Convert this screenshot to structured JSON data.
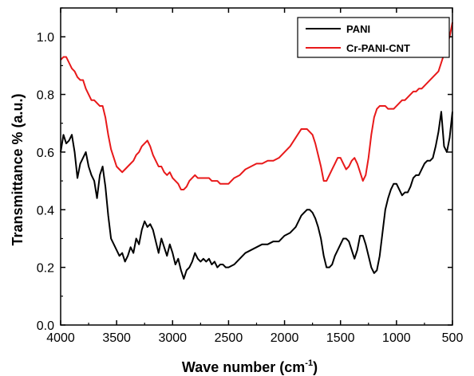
{
  "chart_data": {
    "type": "line",
    "xlabel": "Wave number (cm",
    "xlabel_sup": "-1",
    "xlabel_suffix": ")",
    "ylabel": "Transmittance % (a.u.)",
    "xlim": [
      4000,
      500
    ],
    "ylim": [
      0.0,
      1.1
    ],
    "x_ticks": [
      4000,
      3500,
      3000,
      2500,
      2000,
      1500,
      1000,
      500
    ],
    "y_ticks": [
      0.0,
      0.2,
      0.4,
      0.6,
      0.8,
      1.0
    ],
    "x_tick_labels": [
      "4000",
      "3500",
      "3000",
      "2500",
      "2000",
      "1500",
      "1000",
      "500"
    ],
    "y_tick_labels": [
      "0.0",
      "0.2",
      "0.4",
      "0.6",
      "0.8",
      "1.0"
    ],
    "grid": false,
    "legend_position": "top-right",
    "series": [
      {
        "name": "PANI",
        "color": "#000000",
        "x": [
          4000,
          3975,
          3950,
          3925,
          3900,
          3875,
          3850,
          3825,
          3800,
          3775,
          3750,
          3725,
          3700,
          3675,
          3650,
          3625,
          3600,
          3575,
          3550,
          3525,
          3500,
          3475,
          3450,
          3425,
          3400,
          3375,
          3350,
          3325,
          3300,
          3275,
          3250,
          3225,
          3200,
          3175,
          3150,
          3125,
          3100,
          3075,
          3050,
          3025,
          3000,
          2975,
          2950,
          2925,
          2900,
          2875,
          2850,
          2825,
          2800,
          2775,
          2750,
          2725,
          2700,
          2675,
          2650,
          2625,
          2600,
          2575,
          2550,
          2525,
          2500,
          2450,
          2400,
          2350,
          2300,
          2250,
          2200,
          2150,
          2100,
          2050,
          2000,
          1950,
          1900,
          1850,
          1800,
          1775,
          1750,
          1725,
          1700,
          1675,
          1650,
          1625,
          1600,
          1575,
          1550,
          1525,
          1500,
          1475,
          1450,
          1425,
          1400,
          1375,
          1350,
          1325,
          1300,
          1275,
          1250,
          1225,
          1200,
          1175,
          1150,
          1125,
          1100,
          1075,
          1050,
          1025,
          1000,
          975,
          950,
          925,
          900,
          875,
          850,
          825,
          800,
          775,
          750,
          725,
          700,
          675,
          650,
          625,
          600,
          575,
          550,
          525,
          500
        ],
        "values": [
          0.6,
          0.66,
          0.63,
          0.64,
          0.66,
          0.6,
          0.51,
          0.56,
          0.58,
          0.6,
          0.55,
          0.52,
          0.5,
          0.44,
          0.52,
          0.55,
          0.48,
          0.38,
          0.3,
          0.28,
          0.26,
          0.24,
          0.25,
          0.22,
          0.24,
          0.27,
          0.25,
          0.3,
          0.28,
          0.33,
          0.36,
          0.34,
          0.35,
          0.33,
          0.29,
          0.25,
          0.3,
          0.27,
          0.24,
          0.28,
          0.25,
          0.21,
          0.23,
          0.19,
          0.16,
          0.19,
          0.2,
          0.22,
          0.25,
          0.23,
          0.22,
          0.23,
          0.22,
          0.23,
          0.21,
          0.22,
          0.2,
          0.21,
          0.21,
          0.2,
          0.2,
          0.21,
          0.23,
          0.25,
          0.26,
          0.27,
          0.28,
          0.28,
          0.29,
          0.29,
          0.31,
          0.32,
          0.34,
          0.38,
          0.4,
          0.4,
          0.39,
          0.37,
          0.34,
          0.3,
          0.24,
          0.2,
          0.2,
          0.21,
          0.24,
          0.26,
          0.28,
          0.3,
          0.3,
          0.29,
          0.26,
          0.23,
          0.26,
          0.31,
          0.31,
          0.28,
          0.24,
          0.2,
          0.18,
          0.19,
          0.24,
          0.32,
          0.4,
          0.44,
          0.47,
          0.49,
          0.49,
          0.47,
          0.45,
          0.46,
          0.46,
          0.48,
          0.51,
          0.52,
          0.52,
          0.54,
          0.56,
          0.57,
          0.57,
          0.58,
          0.62,
          0.67,
          0.74,
          0.62,
          0.6,
          0.65,
          0.74
        ],
        "x_note": "x values listed in cm^-1"
      },
      {
        "name": "Cr-PANI-CNT",
        "color": "#e8191a",
        "x": [
          4000,
          3975,
          3950,
          3925,
          3900,
          3875,
          3850,
          3825,
          3800,
          3775,
          3750,
          3725,
          3700,
          3675,
          3650,
          3625,
          3600,
          3575,
          3550,
          3525,
          3500,
          3475,
          3450,
          3425,
          3400,
          3375,
          3350,
          3325,
          3300,
          3275,
          3250,
          3225,
          3200,
          3175,
          3150,
          3125,
          3100,
          3075,
          3050,
          3025,
          3000,
          2975,
          2950,
          2925,
          2900,
          2875,
          2850,
          2825,
          2800,
          2775,
          2750,
          2725,
          2700,
          2675,
          2650,
          2625,
          2600,
          2575,
          2550,
          2525,
          2500,
          2450,
          2400,
          2350,
          2300,
          2250,
          2200,
          2150,
          2100,
          2050,
          2000,
          1950,
          1900,
          1850,
          1800,
          1775,
          1750,
          1725,
          1700,
          1675,
          1650,
          1625,
          1600,
          1575,
          1550,
          1525,
          1500,
          1475,
          1450,
          1425,
          1400,
          1375,
          1350,
          1325,
          1300,
          1275,
          1250,
          1225,
          1200,
          1175,
          1150,
          1125,
          1100,
          1075,
          1050,
          1025,
          1000,
          975,
          950,
          925,
          900,
          875,
          850,
          825,
          800,
          775,
          750,
          725,
          700,
          675,
          650,
          625,
          600,
          575,
          550,
          525,
          500
        ],
        "values": [
          0.92,
          0.93,
          0.93,
          0.91,
          0.89,
          0.88,
          0.86,
          0.85,
          0.85,
          0.82,
          0.8,
          0.78,
          0.78,
          0.77,
          0.76,
          0.76,
          0.72,
          0.66,
          0.61,
          0.58,
          0.55,
          0.54,
          0.53,
          0.54,
          0.55,
          0.56,
          0.57,
          0.59,
          0.6,
          0.62,
          0.63,
          0.64,
          0.62,
          0.59,
          0.57,
          0.55,
          0.55,
          0.53,
          0.52,
          0.53,
          0.51,
          0.5,
          0.49,
          0.47,
          0.47,
          0.48,
          0.5,
          0.51,
          0.52,
          0.51,
          0.51,
          0.51,
          0.51,
          0.51,
          0.5,
          0.5,
          0.5,
          0.49,
          0.49,
          0.49,
          0.49,
          0.51,
          0.52,
          0.54,
          0.55,
          0.56,
          0.56,
          0.57,
          0.57,
          0.58,
          0.6,
          0.62,
          0.65,
          0.68,
          0.68,
          0.67,
          0.66,
          0.63,
          0.59,
          0.55,
          0.5,
          0.5,
          0.52,
          0.54,
          0.56,
          0.58,
          0.58,
          0.56,
          0.54,
          0.55,
          0.57,
          0.58,
          0.56,
          0.53,
          0.5,
          0.52,
          0.58,
          0.66,
          0.72,
          0.75,
          0.76,
          0.76,
          0.76,
          0.75,
          0.75,
          0.75,
          0.76,
          0.77,
          0.78,
          0.78,
          0.79,
          0.8,
          0.81,
          0.81,
          0.82,
          0.82,
          0.83,
          0.84,
          0.85,
          0.86,
          0.87,
          0.88,
          0.91,
          0.94,
          0.97,
          1.0,
          1.05
        ],
        "x_note": "x values listed in cm^-1"
      }
    ]
  }
}
